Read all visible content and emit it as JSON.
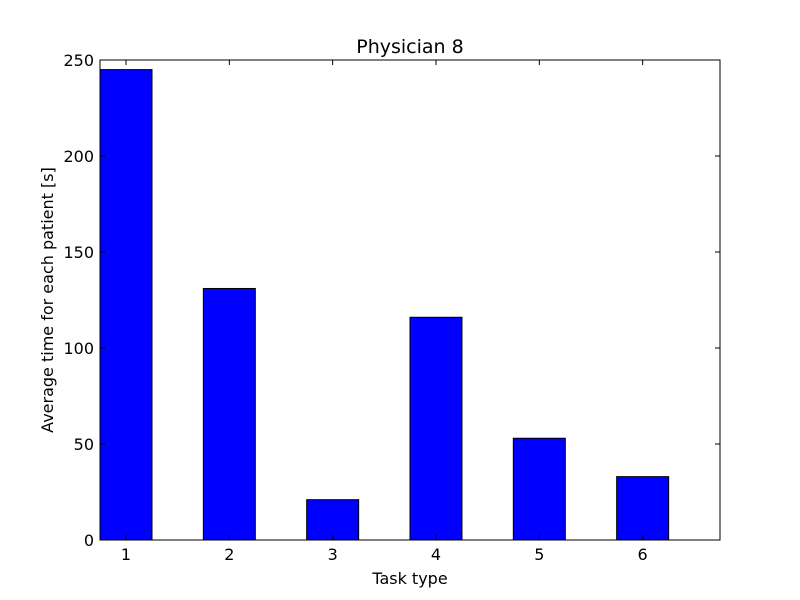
{
  "chart_data": {
    "type": "bar",
    "title": "Physician 8",
    "xlabel": "Task type",
    "ylabel": "Average time for each patient [s]",
    "categories": [
      "1",
      "2",
      "3",
      "4",
      "5",
      "6"
    ],
    "values": [
      245,
      131,
      21,
      116,
      53,
      33
    ],
    "ylim": [
      0,
      250
    ],
    "yticks": [
      "0",
      "50",
      "100",
      "150",
      "200",
      "250"
    ],
    "bar_color": "#0000ff",
    "edge_color": "#000000",
    "grid": false
  }
}
